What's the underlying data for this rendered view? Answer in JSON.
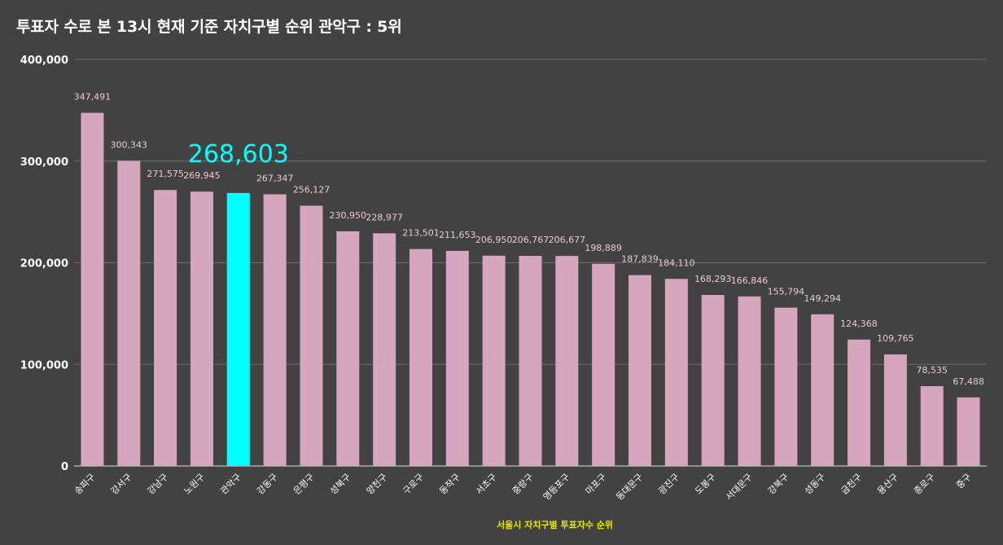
{
  "title": "투표자 수로 본 13시 현재 기준 자치구별 순위 관악구 : 5위",
  "colors": {
    "background": "#424242",
    "bar": "#d5a6bd",
    "highlight": "#00ffff",
    "grid": "#6e6e6e",
    "axis_title": "#e6e600",
    "data_label": "#e8c9d8"
  },
  "chart_data": {
    "type": "bar",
    "title": "투표자 수로 본 13시 현재 기준 자치구별 순위 관악구 : 5위",
    "xlabel": "서울시 자치구별 투표자수 순위",
    "ylabel": "",
    "ylim": [
      0,
      400000
    ],
    "yticks": [
      0,
      100000,
      200000,
      300000,
      400000
    ],
    "ytick_labels": [
      "0",
      "100,000",
      "200,000",
      "300,000",
      "400,000"
    ],
    "grid": true,
    "categories": [
      "송파구",
      "강서구",
      "강남구",
      "노원구",
      "관악구",
      "강동구",
      "은평구",
      "성북구",
      "양천구",
      "구로구",
      "동작구",
      "서초구",
      "중랑구",
      "영등포구",
      "마포구",
      "동대문구",
      "광진구",
      "도봉구",
      "서대문구",
      "강북구",
      "성동구",
      "금천구",
      "용산구",
      "종로구",
      "중구"
    ],
    "values": [
      347491,
      300343,
      271575,
      269945,
      268603,
      267347,
      256127,
      230950,
      228977,
      213501,
      211653,
      206950,
      206767,
      206677,
      198889,
      187839,
      184110,
      168293,
      166846,
      155794,
      149294,
      124368,
      109765,
      78535,
      67488
    ],
    "data_labels": [
      "347,491",
      "300,343",
      "271,575",
      "269,945",
      "",
      "267,347",
      "256,127",
      "230,950",
      "228,977",
      "213,501",
      "211,653",
      "206,950",
      "206,767",
      "206,677",
      "198,889",
      "187,839",
      "184,110",
      "168,293",
      "166,846",
      "155,794",
      "149,294",
      "124,368",
      "109,765",
      "78,535",
      "67,488"
    ],
    "highlight_index": 4,
    "highlight_label": "268,603"
  }
}
